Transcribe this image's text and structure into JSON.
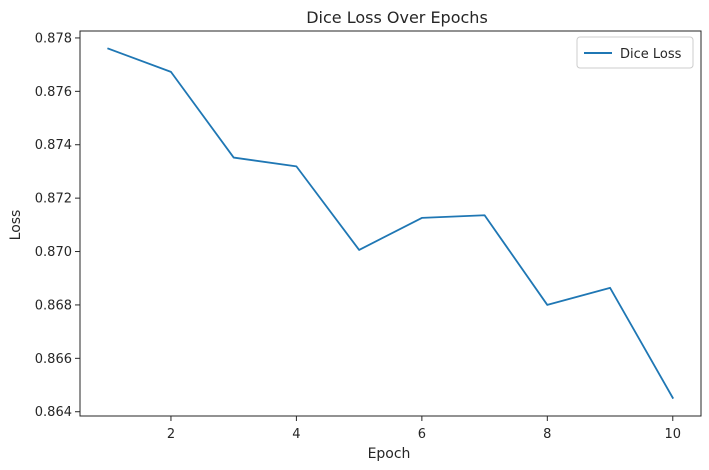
{
  "chart_data": {
    "type": "line",
    "title": "Dice Loss Over Epochs",
    "xlabel": "Epoch",
    "ylabel": "Loss",
    "xlim": [
      0.55,
      10.45
    ],
    "ylim": [
      0.86384,
      0.87826
    ],
    "xticks": [
      2,
      4,
      6,
      8,
      10
    ],
    "yticks": [
      0.864,
      0.866,
      0.868,
      0.87,
      0.872,
      0.874,
      0.876,
      0.878
    ],
    "xtick_labels": [
      "2",
      "4",
      "6",
      "8",
      "10"
    ],
    "ytick_labels": [
      "0.864",
      "0.866",
      "0.868",
      "0.870",
      "0.872",
      "0.874",
      "0.876",
      "0.878"
    ],
    "grid": false,
    "legend": {
      "position": "top-right"
    },
    "series": [
      {
        "name": "Dice Loss",
        "color": "#1f77b4",
        "x": [
          1,
          2,
          3,
          4,
          5,
          6,
          7,
          8,
          9,
          10
        ],
        "y": [
          0.8776,
          0.87673,
          0.87352,
          0.87319,
          0.87006,
          0.87126,
          0.87136,
          0.868,
          0.86864,
          0.86452
        ]
      }
    ]
  }
}
